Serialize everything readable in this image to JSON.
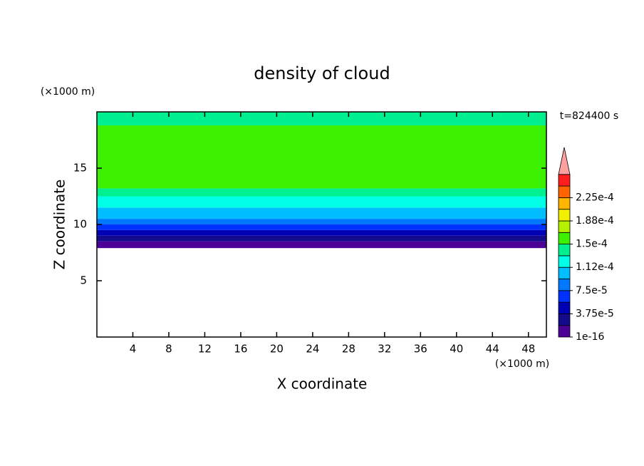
{
  "chart_data": {
    "type": "contour",
    "title": "density of cloud",
    "x_label": "X coordinate",
    "y_label": "Z coordinate",
    "x_unit": "(×1000 m)",
    "y_unit": "(×1000 m)",
    "time_label": "t=824400 s",
    "xlim": [
      0,
      50
    ],
    "xticks": [
      4,
      8,
      12,
      16,
      20,
      24,
      28,
      32,
      36,
      40,
      44,
      48
    ],
    "ylim": [
      0,
      20
    ],
    "yticks": [
      5,
      10,
      15
    ],
    "colors": [
      "#4b0096",
      "#140a8c",
      "#0000b4",
      "#0032ff",
      "#0078ff",
      "#00beff",
      "#00ffe6",
      "#00f090",
      "#3cf000",
      "#b4f000",
      "#f0f000",
      "#ffb400",
      "#ff6400",
      "#ff1e1e"
    ],
    "overflow_color": "#ffa0a0",
    "clim": [
      1e-16,
      0.0002625
    ],
    "cticks": [
      1e-16,
      {
        "value": 3.75e-05,
        "label": "3.75e-5"
      },
      {
        "value": 7.5e-05,
        "label": "7.5e-5"
      },
      {
        "value": 0.0001125,
        "label": "1.12e-4"
      },
      {
        "value": 0.00015,
        "label": "1.5e-4"
      },
      {
        "value": 0.0001875,
        "label": "1.88e-4"
      },
      {
        "value": 0.000225,
        "label": "2.25e-4"
      }
    ],
    "layers": [
      {
        "z": [
          7.9,
          8.5
        ],
        "level": 0
      },
      {
        "z": [
          8.5,
          9.0
        ],
        "level": 1
      },
      {
        "z": [
          9.0,
          9.5
        ],
        "level": 2
      },
      {
        "z": [
          9.5,
          10.0
        ],
        "level": 3
      },
      {
        "z": [
          10.0,
          10.5
        ],
        "level": 4
      },
      {
        "z": [
          10.5,
          11.5
        ],
        "level": 5
      },
      {
        "z": [
          11.5,
          12.5
        ],
        "level": 6
      },
      {
        "z": [
          12.5,
          13.2
        ],
        "level": 7
      },
      {
        "z": [
          13.2,
          18.8
        ],
        "level": 8
      },
      {
        "z": [
          18.8,
          20
        ],
        "level": 7
      }
    ]
  }
}
